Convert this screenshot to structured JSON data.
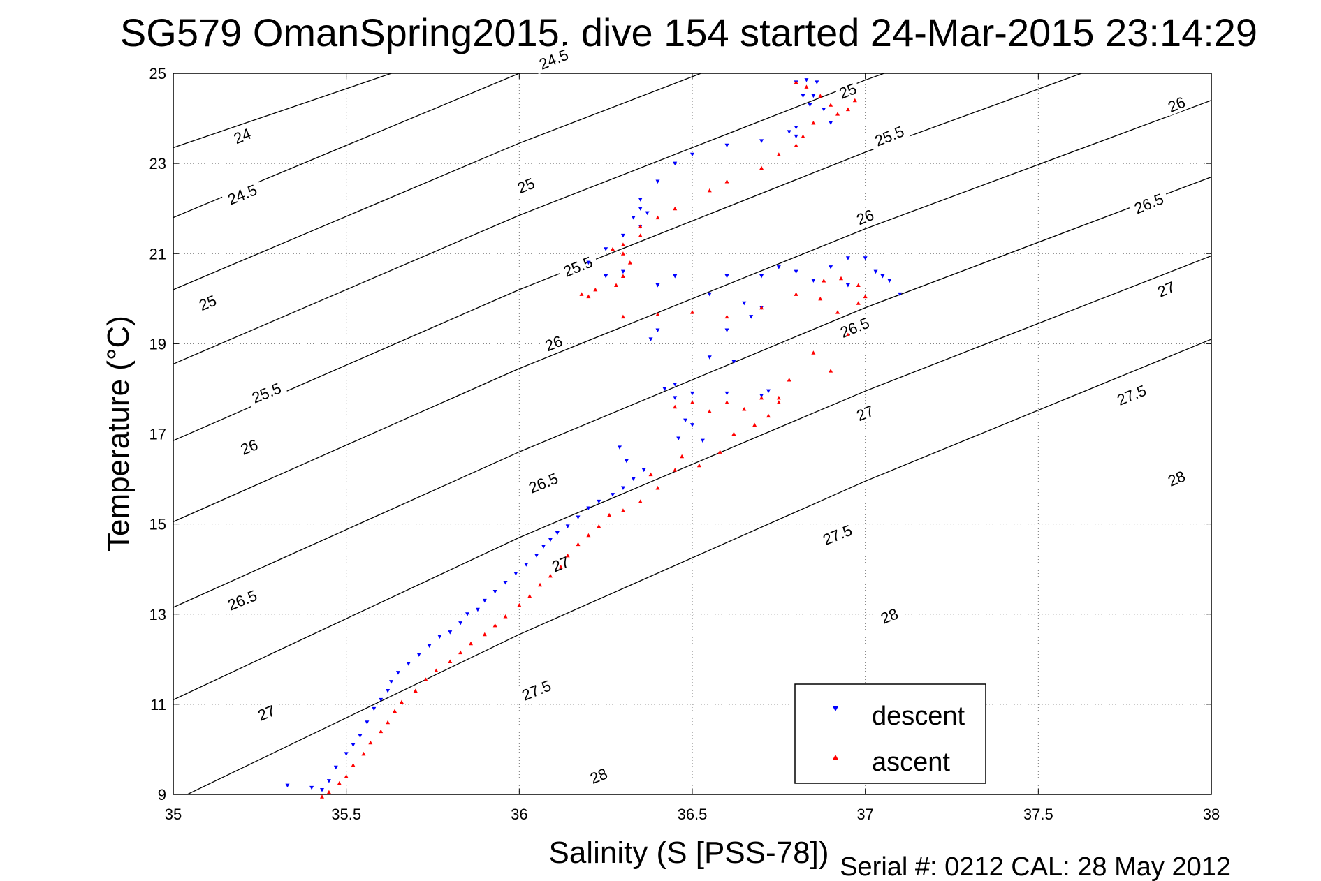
{
  "chart_data": {
    "type": "scatter",
    "title": "SG579 OmanSpring2015, dive 154 started 24-Mar-2015 23:14:29",
    "xlabel": "Salinity (S [PSS-78])",
    "ylabel": "Temperature (°C)",
    "xlim": [
      35,
      38
    ],
    "ylim": [
      9,
      25
    ],
    "xticks": [
      "35",
      "35.5",
      "36",
      "36.5",
      "37",
      "37.5",
      "38"
    ],
    "yticks": [
      "9",
      "11",
      "13",
      "15",
      "17",
      "19",
      "21",
      "23",
      "25"
    ],
    "grid": true,
    "legend_position": "bottom-right",
    "isopycnals": [
      {
        "sigma": 24,
        "label": "24",
        "points": [
          [
            35,
            23.35
          ],
          [
            38,
            31.2
          ]
        ]
      },
      {
        "sigma": 24.5,
        "label": "24.5",
        "points": [
          [
            35,
            21.8
          ],
          [
            36,
            25.0
          ],
          [
            38,
            30.6
          ]
        ]
      },
      {
        "sigma": 25,
        "label": "25",
        "points": [
          [
            35,
            20.2
          ],
          [
            36,
            23.45
          ],
          [
            37,
            26.4
          ],
          [
            38,
            29.1
          ]
        ]
      },
      {
        "sigma": 25.5,
        "label": "25.5",
        "points": [
          [
            35,
            18.55
          ],
          [
            36,
            21.85
          ],
          [
            37,
            24.85
          ],
          [
            38,
            27.6
          ]
        ]
      },
      {
        "sigma": 26,
        "label": "26",
        "points": [
          [
            35,
            16.85
          ],
          [
            36,
            20.2
          ],
          [
            37,
            23.25
          ],
          [
            38,
            26.05
          ]
        ]
      },
      {
        "sigma": 26.5,
        "label": "26.5",
        "points": [
          [
            35,
            15.05
          ],
          [
            36,
            18.45
          ],
          [
            37,
            21.55
          ],
          [
            38,
            24.4
          ]
        ]
      },
      {
        "sigma": 27,
        "label": "27",
        "points": [
          [
            35,
            13.15
          ],
          [
            36,
            16.6
          ],
          [
            37,
            19.8
          ],
          [
            38,
            22.7
          ]
        ]
      },
      {
        "sigma": 27.5,
        "label": "27.5",
        "points": [
          [
            35,
            11.1
          ],
          [
            36,
            14.7
          ],
          [
            37,
            17.95
          ],
          [
            38,
            20.95
          ]
        ]
      },
      {
        "sigma": 28,
        "label": "28",
        "points": [
          [
            35,
            8.85
          ],
          [
            36,
            12.55
          ],
          [
            37,
            15.95
          ],
          [
            38,
            19.1
          ]
        ]
      }
    ],
    "isopycnal_labels": [
      {
        "label": "24",
        "s": 35.2,
        "t": 23.6
      },
      {
        "label": "24.5",
        "s": 35.2,
        "t": 22.3
      },
      {
        "label": "24.5",
        "s": 36.1,
        "t": 25.3
      },
      {
        "label": "25",
        "s": 35.1,
        "t": 19.9
      },
      {
        "label": "25",
        "s": 36.02,
        "t": 22.5
      },
      {
        "label": "25",
        "s": 36.95,
        "t": 24.6
      },
      {
        "label": "25.5",
        "s": 35.27,
        "t": 17.9
      },
      {
        "label": "25.5",
        "s": 36.17,
        "t": 20.7
      },
      {
        "label": "25.5",
        "s": 37.07,
        "t": 23.6
      },
      {
        "label": "26",
        "s": 35.22,
        "t": 16.7
      },
      {
        "label": "26",
        "s": 36.1,
        "t": 19.0
      },
      {
        "label": "26",
        "s": 37.0,
        "t": 21.8
      },
      {
        "label": "26",
        "s": 37.9,
        "t": 24.3
      },
      {
        "label": "26.5",
        "s": 35.2,
        "t": 13.3
      },
      {
        "label": "26.5",
        "s": 36.07,
        "t": 15.9
      },
      {
        "label": "26.5",
        "s": 36.97,
        "t": 19.35
      },
      {
        "label": "26.5",
        "s": 37.82,
        "t": 22.1
      },
      {
        "label": "27",
        "s": 35.27,
        "t": 10.8
      },
      {
        "label": "27",
        "s": 36.12,
        "t": 14.1
      },
      {
        "label": "27",
        "s": 37.0,
        "t": 17.45
      },
      {
        "label": "27",
        "s": 37.87,
        "t": 20.2
      },
      {
        "label": "27.5",
        "s": 36.05,
        "t": 11.3
      },
      {
        "label": "27.5",
        "s": 36.92,
        "t": 14.75
      },
      {
        "label": "27.5",
        "s": 37.77,
        "t": 17.85
      },
      {
        "label": "28",
        "s": 36.23,
        "t": 9.4
      },
      {
        "label": "28",
        "s": 37.07,
        "t": 12.95
      },
      {
        "label": "28",
        "s": 37.9,
        "t": 16.0
      }
    ],
    "series": [
      {
        "name": "descent",
        "color": "#0000ff",
        "marker": "triangle-down",
        "points": [
          [
            35.33,
            9.2
          ],
          [
            35.4,
            9.15
          ],
          [
            35.43,
            9.1
          ],
          [
            35.45,
            9.3
          ],
          [
            35.47,
            9.6
          ],
          [
            35.5,
            9.9
          ],
          [
            35.52,
            10.1
          ],
          [
            35.54,
            10.3
          ],
          [
            35.56,
            10.6
          ],
          [
            35.58,
            10.9
          ],
          [
            35.6,
            11.1
          ],
          [
            35.62,
            11.3
          ],
          [
            35.63,
            11.5
          ],
          [
            35.65,
            11.7
          ],
          [
            35.68,
            11.9
          ],
          [
            35.71,
            12.1
          ],
          [
            35.74,
            12.3
          ],
          [
            35.77,
            12.5
          ],
          [
            35.8,
            12.6
          ],
          [
            35.83,
            12.8
          ],
          [
            35.85,
            13.0
          ],
          [
            35.88,
            13.1
          ],
          [
            35.9,
            13.3
          ],
          [
            35.93,
            13.5
          ],
          [
            35.96,
            13.7
          ],
          [
            35.99,
            13.9
          ],
          [
            36.02,
            14.1
          ],
          [
            36.05,
            14.3
          ],
          [
            36.07,
            14.5
          ],
          [
            36.09,
            14.65
          ],
          [
            36.11,
            14.8
          ],
          [
            36.14,
            14.95
          ],
          [
            36.17,
            15.15
          ],
          [
            36.2,
            15.35
          ],
          [
            36.23,
            15.5
          ],
          [
            36.27,
            15.65
          ],
          [
            36.3,
            15.8
          ],
          [
            36.33,
            16.0
          ],
          [
            36.31,
            16.4
          ],
          [
            36.29,
            16.7
          ],
          [
            36.36,
            16.2
          ],
          [
            36.46,
            16.9
          ],
          [
            36.5,
            17.2
          ],
          [
            36.53,
            16.85
          ],
          [
            36.48,
            17.3
          ],
          [
            36.45,
            17.8
          ],
          [
            36.42,
            18.0
          ],
          [
            36.45,
            18.1
          ],
          [
            36.5,
            17.9
          ],
          [
            36.6,
            17.9
          ],
          [
            36.7,
            17.85
          ],
          [
            36.72,
            17.95
          ],
          [
            36.55,
            18.7
          ],
          [
            36.62,
            18.6
          ],
          [
            36.4,
            19.3
          ],
          [
            36.38,
            19.1
          ],
          [
            36.6,
            19.3
          ],
          [
            36.67,
            19.6
          ],
          [
            36.7,
            19.8
          ],
          [
            36.65,
            19.9
          ],
          [
            36.55,
            20.1
          ],
          [
            36.45,
            20.5
          ],
          [
            36.4,
            20.3
          ],
          [
            36.3,
            20.6
          ],
          [
            36.25,
            20.5
          ],
          [
            36.2,
            20.8
          ],
          [
            36.25,
            21.1
          ],
          [
            36.3,
            21.4
          ],
          [
            36.35,
            21.6
          ],
          [
            36.33,
            21.8
          ],
          [
            36.37,
            21.9
          ],
          [
            36.35,
            22.0
          ],
          [
            36.35,
            22.2
          ],
          [
            36.4,
            22.6
          ],
          [
            36.45,
            23.0
          ],
          [
            36.5,
            23.2
          ],
          [
            36.6,
            23.4
          ],
          [
            36.7,
            23.5
          ],
          [
            36.8,
            23.6
          ],
          [
            36.78,
            23.7
          ],
          [
            36.8,
            23.8
          ],
          [
            36.84,
            24.3
          ],
          [
            36.82,
            24.5
          ],
          [
            36.8,
            24.8
          ],
          [
            36.83,
            24.85
          ],
          [
            36.86,
            24.8
          ],
          [
            36.85,
            24.5
          ],
          [
            36.88,
            24.2
          ],
          [
            36.9,
            23.9
          ],
          [
            36.6,
            20.5
          ],
          [
            36.75,
            20.7
          ],
          [
            36.8,
            20.6
          ],
          [
            36.9,
            20.7
          ],
          [
            36.95,
            20.9
          ],
          [
            37.0,
            20.9
          ],
          [
            37.03,
            20.6
          ],
          [
            37.05,
            20.5
          ],
          [
            37.07,
            20.4
          ],
          [
            37.1,
            20.1
          ],
          [
            36.85,
            20.4
          ],
          [
            36.95,
            20.3
          ],
          [
            36.7,
            20.5
          ]
        ]
      },
      {
        "name": "ascent",
        "color": "#ff0000",
        "marker": "triangle-up",
        "points": [
          [
            35.43,
            8.95
          ],
          [
            35.45,
            9.05
          ],
          [
            35.48,
            9.25
          ],
          [
            35.5,
            9.4
          ],
          [
            35.52,
            9.65
          ],
          [
            35.55,
            9.9
          ],
          [
            35.57,
            10.15
          ],
          [
            35.6,
            10.4
          ],
          [
            35.62,
            10.6
          ],
          [
            35.64,
            10.85
          ],
          [
            35.66,
            11.05
          ],
          [
            35.7,
            11.3
          ],
          [
            35.73,
            11.55
          ],
          [
            35.76,
            11.75
          ],
          [
            35.8,
            11.95
          ],
          [
            35.83,
            12.15
          ],
          [
            35.86,
            12.35
          ],
          [
            35.9,
            12.55
          ],
          [
            35.93,
            12.75
          ],
          [
            35.96,
            12.95
          ],
          [
            36.0,
            13.2
          ],
          [
            36.03,
            13.4
          ],
          [
            36.06,
            13.65
          ],
          [
            36.09,
            13.85
          ],
          [
            36.12,
            14.05
          ],
          [
            36.14,
            14.3
          ],
          [
            36.17,
            14.55
          ],
          [
            36.2,
            14.75
          ],
          [
            36.23,
            14.95
          ],
          [
            36.26,
            15.2
          ],
          [
            36.3,
            15.3
          ],
          [
            36.35,
            15.5
          ],
          [
            36.4,
            15.8
          ],
          [
            36.38,
            16.1
          ],
          [
            36.45,
            16.2
          ],
          [
            36.47,
            16.5
          ],
          [
            36.52,
            16.3
          ],
          [
            36.58,
            16.6
          ],
          [
            36.62,
            17.0
          ],
          [
            36.68,
            17.2
          ],
          [
            36.72,
            17.4
          ],
          [
            36.75,
            17.7
          ],
          [
            36.7,
            17.8
          ],
          [
            36.6,
            17.7
          ],
          [
            36.5,
            17.7
          ],
          [
            36.45,
            17.6
          ],
          [
            36.55,
            17.5
          ],
          [
            36.65,
            17.55
          ],
          [
            36.75,
            17.8
          ],
          [
            36.78,
            18.2
          ],
          [
            36.85,
            18.8
          ],
          [
            36.9,
            18.4
          ],
          [
            36.95,
            19.2
          ],
          [
            36.92,
            19.7
          ],
          [
            36.87,
            20.0
          ],
          [
            36.8,
            20.1
          ],
          [
            36.7,
            19.8
          ],
          [
            36.6,
            19.6
          ],
          [
            36.5,
            19.7
          ],
          [
            36.4,
            19.65
          ],
          [
            36.3,
            19.6
          ],
          [
            36.2,
            20.05
          ],
          [
            36.18,
            20.1
          ],
          [
            36.22,
            20.2
          ],
          [
            36.28,
            20.3
          ],
          [
            36.3,
            20.5
          ],
          [
            36.32,
            20.8
          ],
          [
            36.3,
            21.0
          ],
          [
            36.27,
            21.1
          ],
          [
            36.3,
            21.2
          ],
          [
            36.35,
            21.4
          ],
          [
            36.35,
            21.6
          ],
          [
            36.4,
            21.8
          ],
          [
            36.45,
            22.0
          ],
          [
            36.55,
            22.4
          ],
          [
            36.6,
            22.6
          ],
          [
            36.7,
            22.9
          ],
          [
            36.75,
            23.2
          ],
          [
            36.8,
            23.4
          ],
          [
            36.82,
            23.6
          ],
          [
            36.85,
            23.9
          ],
          [
            36.8,
            24.8
          ],
          [
            36.83,
            24.7
          ],
          [
            36.87,
            24.5
          ],
          [
            36.9,
            24.3
          ],
          [
            36.92,
            24.1
          ],
          [
            36.95,
            24.2
          ],
          [
            36.97,
            24.4
          ],
          [
            36.88,
            20.4
          ],
          [
            36.93,
            20.45
          ],
          [
            36.98,
            20.3
          ],
          [
            37.0,
            20.05
          ],
          [
            36.98,
            19.9
          ]
        ]
      }
    ]
  },
  "legend": {
    "descent": "descent",
    "ascent": "ascent"
  },
  "footer": "Serial #: 0212  CAL: 28 May 2012"
}
